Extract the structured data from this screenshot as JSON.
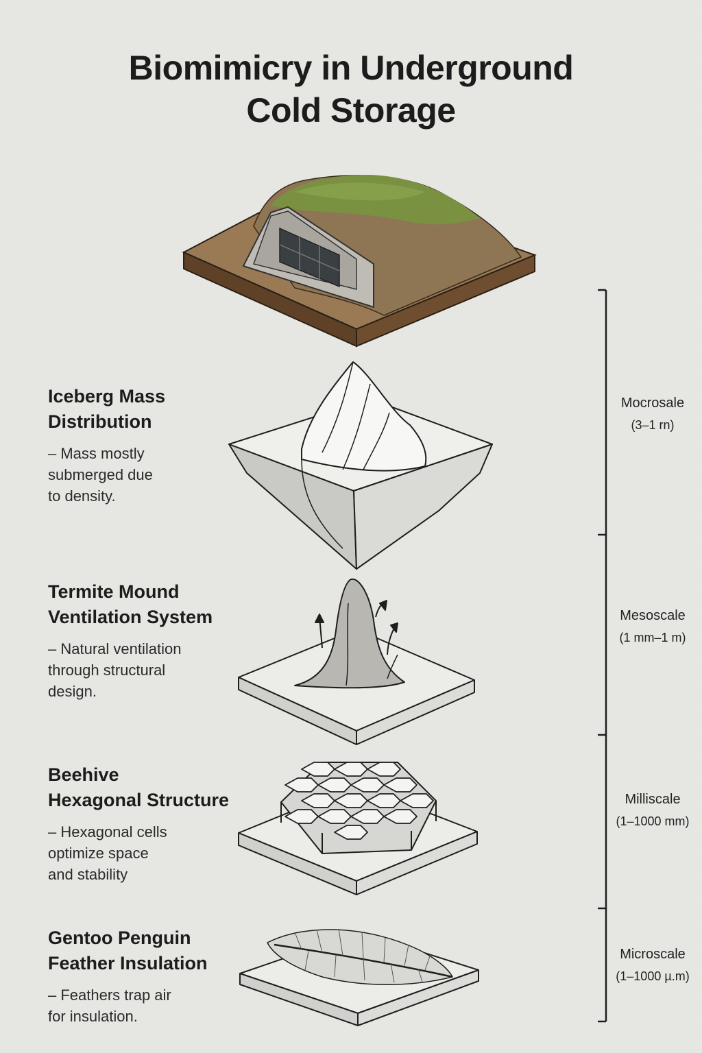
{
  "title": {
    "line1": "Biomimicry in Underground",
    "line2": "Cold Storage"
  },
  "layers": [
    {
      "title_line1": "Iceberg Mass",
      "title_line2": "Distribution",
      "desc": [
        "– Mass mostly",
        "submerged due",
        "to density."
      ],
      "scale_name": "Mocrosale",
      "scale_range": "(3–1 rn)"
    },
    {
      "title_line1": "Termite Mound",
      "title_line2": "Ventilation System",
      "desc": [
        "– Natural ventilation",
        "through structural",
        "design."
      ],
      "scale_name": "Mesoscale",
      "scale_range": "(1 mm–1 m)"
    },
    {
      "title_line1": "Beehive",
      "title_line2": "Hexagonal Structure",
      "desc": [
        "– Hexagonal cells",
        "optimize space",
        "and stability"
      ],
      "scale_name": "Milliscale",
      "scale_range": "(1–1000 mm)"
    },
    {
      "title_line1": "Gentoo Penguin",
      "title_line2": "Feather Insulation",
      "desc": [
        "– Feathers trap air",
        "for insulation."
      ],
      "scale_name": "Microscale",
      "scale_range": "(1–1000 µ.m)"
    }
  ],
  "colors": {
    "grass": "#7a9142",
    "soil": "#8a6f4d",
    "door": "#3a3f42",
    "ice": "#f4f4f2",
    "line": "#1e1e1e"
  }
}
